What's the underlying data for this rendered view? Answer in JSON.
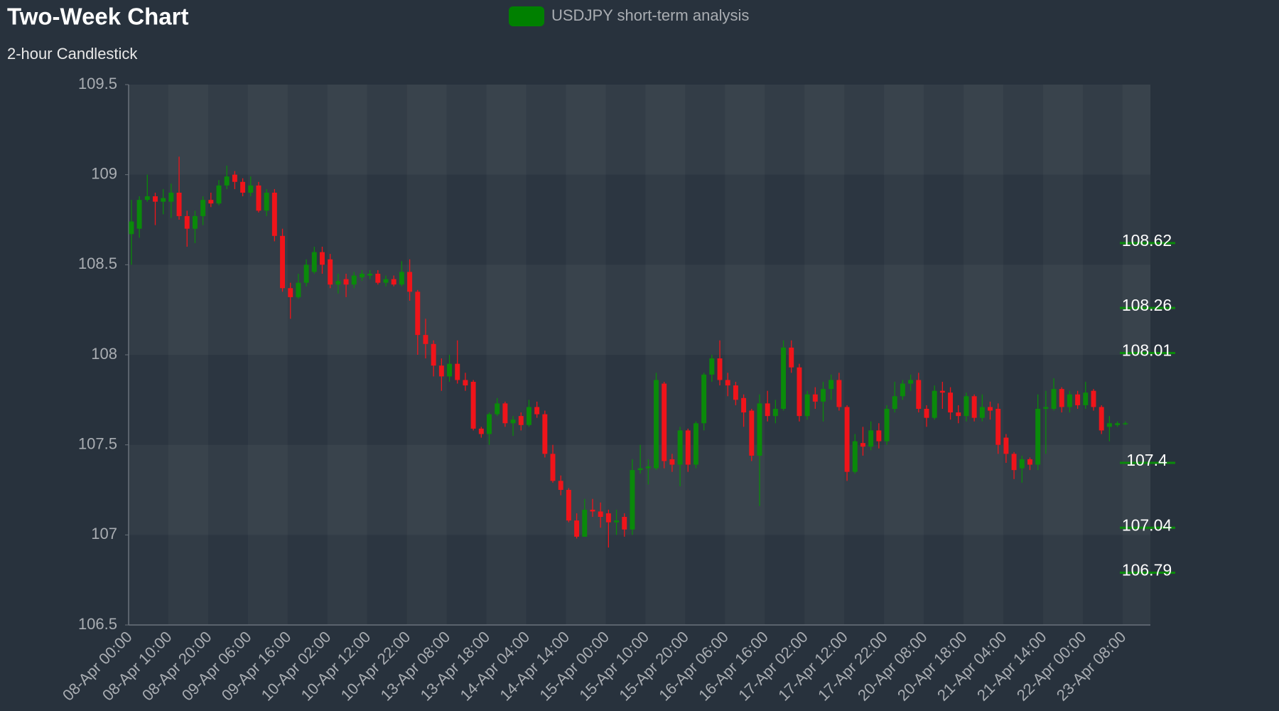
{
  "chart_data": {
    "type": "candlestick",
    "title": "Two-Week Chart",
    "subtitle": "2-hour Candlestick",
    "legend": "top",
    "categories": [
      "08-Apr 00:00",
      null,
      null,
      null,
      null,
      "08-Apr 10:00",
      null,
      null,
      null,
      null,
      "08-Apr 20:00",
      null,
      null,
      null,
      null,
      "09-Apr 06:00",
      null,
      null,
      null,
      null,
      "09-Apr 16:00",
      null,
      null,
      null,
      null,
      "10-Apr 02:00",
      null,
      null,
      null,
      null,
      "10-Apr 12:00",
      null,
      null,
      null,
      null,
      "10-Apr 22:00",
      null,
      null,
      null,
      null,
      "13-Apr 08:00",
      null,
      null,
      null,
      null,
      "13-Apr 18:00",
      null,
      null,
      null,
      null,
      "14-Apr 04:00",
      null,
      null,
      null,
      null,
      "14-Apr 14:00",
      null,
      null,
      null,
      null,
      "15-Apr 00:00",
      null,
      null,
      null,
      null,
      "15-Apr 10:00",
      null,
      null,
      null,
      null,
      "15-Apr 20:00",
      null,
      null,
      null,
      null,
      "16-Apr 06:00",
      null,
      null,
      null,
      null,
      "16-Apr 16:00",
      null,
      null,
      null,
      null,
      "17-Apr 02:00",
      null,
      null,
      null,
      null,
      "17-Apr 12:00",
      null,
      null,
      null,
      null,
      "17-Apr 22:00",
      null,
      null,
      null,
      null,
      "20-Apr 08:00",
      null,
      null,
      null,
      null,
      "20-Apr 18:00",
      null,
      null,
      null,
      null,
      "21-Apr 04:00",
      null,
      null,
      null,
      null,
      "21-Apr 14:00",
      null,
      null,
      null,
      null,
      "22-Apr 00:00",
      null,
      null,
      null,
      null,
      "23-Apr 08:00"
    ],
    "series": [
      {
        "name": "USDJPY short-term analysis",
        "color": "#008000",
        "up_color": "#0a8a0a",
        "down_color": "#f0141a",
        "open": [
          108.67,
          108.7,
          108.86,
          108.88,
          108.85,
          108.85,
          108.9,
          108.77,
          108.7,
          108.77,
          108.86,
          108.84,
          108.94,
          109.0,
          108.96,
          108.9,
          108.94,
          108.8,
          108.9,
          108.66,
          108.37,
          108.32,
          108.4,
          108.46,
          108.57,
          108.53,
          108.39,
          108.42,
          108.39,
          108.43,
          108.44,
          108.45,
          108.4,
          108.42,
          108.39,
          108.46,
          108.35,
          108.11,
          108.06,
          107.94,
          107.88,
          107.95,
          107.86,
          107.85,
          107.59,
          107.56,
          107.67,
          107.73,
          107.62,
          107.66,
          107.61,
          107.71,
          107.67,
          107.45,
          107.3,
          107.25,
          107.08,
          106.99,
          107.14,
          107.13,
          107.12,
          107.07,
          107.1,
          107.03,
          107.36,
          107.37,
          107.37,
          107.84,
          107.42,
          107.39,
          107.58,
          107.39,
          107.62,
          107.89,
          107.98,
          107.86,
          107.83,
          107.76,
          107.69,
          107.44,
          107.73,
          107.66,
          107.7,
          108.04,
          107.93,
          107.66,
          107.78,
          107.74,
          107.81,
          107.86,
          107.71,
          107.35,
          107.51,
          107.49,
          107.58,
          107.52,
          107.7,
          107.77,
          107.84,
          107.86,
          107.7,
          107.65,
          107.8,
          107.79,
          107.68,
          107.66,
          107.77,
          107.65,
          107.71,
          107.7,
          107.54,
          107.45,
          107.37,
          107.42,
          107.39,
          107.7,
          107.7,
          107.81,
          107.71,
          107.78,
          107.72,
          107.8,
          107.71,
          107.6,
          107.61,
          107.62
        ],
        "high": [
          108.86,
          108.88,
          109.0,
          108.9,
          108.92,
          108.95,
          109.1,
          108.8,
          108.8,
          108.88,
          108.9,
          108.97,
          109.05,
          109.02,
          108.98,
          108.99,
          108.96,
          108.92,
          108.92,
          108.7,
          108.4,
          108.45,
          108.53,
          108.6,
          108.6,
          108.56,
          108.45,
          108.45,
          108.46,
          108.47,
          108.47,
          108.47,
          108.44,
          108.44,
          108.52,
          108.53,
          108.36,
          108.2,
          108.08,
          107.98,
          108.0,
          108.08,
          107.9,
          107.86,
          107.6,
          107.68,
          107.76,
          107.74,
          107.66,
          107.68,
          107.75,
          107.74,
          107.69,
          107.5,
          107.33,
          107.26,
          107.12,
          107.2,
          107.2,
          107.18,
          107.14,
          107.14,
          107.12,
          107.42,
          107.5,
          107.42,
          107.9,
          107.85,
          107.45,
          107.6,
          107.59,
          107.63,
          107.9,
          108.0,
          108.08,
          107.9,
          107.85,
          107.78,
          107.7,
          107.78,
          107.8,
          107.75,
          108.08,
          108.08,
          107.95,
          107.8,
          107.82,
          107.85,
          107.89,
          107.9,
          107.72,
          107.56,
          107.6,
          107.63,
          107.62,
          107.72,
          107.85,
          107.86,
          107.89,
          107.9,
          107.72,
          107.83,
          107.85,
          107.82,
          107.72,
          107.79,
          107.78,
          107.78,
          107.74,
          107.73,
          107.56,
          107.46,
          107.44,
          107.43,
          107.78,
          107.8,
          107.87,
          107.82,
          107.8,
          107.8,
          107.85,
          107.81,
          107.72,
          107.66,
          107.63,
          107.63
        ],
        "low": [
          108.5,
          108.65,
          108.85,
          108.72,
          108.78,
          108.76,
          108.75,
          108.6,
          108.62,
          108.72,
          108.82,
          108.83,
          108.92,
          108.92,
          108.88,
          108.88,
          108.79,
          108.77,
          108.63,
          108.35,
          108.2,
          108.31,
          108.38,
          108.45,
          108.45,
          108.37,
          108.34,
          108.32,
          108.37,
          108.41,
          108.42,
          108.39,
          108.38,
          108.38,
          108.38,
          108.3,
          108.0,
          107.98,
          107.88,
          107.8,
          107.85,
          107.84,
          107.8,
          107.58,
          107.54,
          107.5,
          107.66,
          107.6,
          107.55,
          107.58,
          107.6,
          107.65,
          107.43,
          107.29,
          107.22,
          107.07,
          106.98,
          106.99,
          107.1,
          107.04,
          106.93,
          107.0,
          106.99,
          107.0,
          107.34,
          107.28,
          107.36,
          107.37,
          107.35,
          107.27,
          107.35,
          107.37,
          107.58,
          107.85,
          107.83,
          107.77,
          107.72,
          107.6,
          107.41,
          107.16,
          107.63,
          107.62,
          107.69,
          107.9,
          107.63,
          107.64,
          107.7,
          107.63,
          107.75,
          107.69,
          107.3,
          107.34,
          107.44,
          107.47,
          107.48,
          107.5,
          107.68,
          107.75,
          107.8,
          107.68,
          107.6,
          107.64,
          107.7,
          107.64,
          107.62,
          107.63,
          107.63,
          107.63,
          107.64,
          107.45,
          107.4,
          107.31,
          107.29,
          107.36,
          107.36,
          107.45,
          107.69,
          107.68,
          107.68,
          107.7,
          107.7,
          107.69,
          107.56,
          107.52,
          107.6,
          107.61
        ],
        "close": [
          108.74,
          108.86,
          108.88,
          108.85,
          108.87,
          108.9,
          108.77,
          108.7,
          108.77,
          108.86,
          108.84,
          108.94,
          108.99,
          108.96,
          108.9,
          108.94,
          108.8,
          108.9,
          108.66,
          108.37,
          108.32,
          108.4,
          108.5,
          108.57,
          108.5,
          108.39,
          108.41,
          108.39,
          108.44,
          108.45,
          108.45,
          108.4,
          108.42,
          108.39,
          108.46,
          108.35,
          108.11,
          108.06,
          107.94,
          107.88,
          107.95,
          107.86,
          107.83,
          107.59,
          107.56,
          107.67,
          107.73,
          107.62,
          107.64,
          107.61,
          107.71,
          107.67,
          107.45,
          107.3,
          107.25,
          107.08,
          106.99,
          107.14,
          107.13,
          107.1,
          107.07,
          107.08,
          107.03,
          107.36,
          107.37,
          107.38,
          107.86,
          107.41,
          107.39,
          107.58,
          107.39,
          107.62,
          107.89,
          107.98,
          107.86,
          107.83,
          107.75,
          107.68,
          107.44,
          107.73,
          107.66,
          107.7,
          108.04,
          107.93,
          107.66,
          107.78,
          107.74,
          107.81,
          107.86,
          107.71,
          107.35,
          107.52,
          107.49,
          107.58,
          107.52,
          107.7,
          107.77,
          107.84,
          107.86,
          107.7,
          107.65,
          107.8,
          107.79,
          107.68,
          107.66,
          107.77,
          107.65,
          107.71,
          107.69,
          107.5,
          107.45,
          107.36,
          107.42,
          107.39,
          107.7,
          107.71,
          107.81,
          107.71,
          107.78,
          107.72,
          107.79,
          107.71,
          107.58,
          107.62,
          107.62,
          107.62
        ]
      }
    ],
    "levels": [
      108.62,
      108.26,
      108.01,
      107.4,
      107.04,
      106.79
    ],
    "level_color": "#0a8a0a",
    "ylim": [
      106.5,
      109.5
    ],
    "yticks": [
      106.5,
      107,
      107.5,
      108,
      108.5,
      109,
      109.5
    ]
  }
}
